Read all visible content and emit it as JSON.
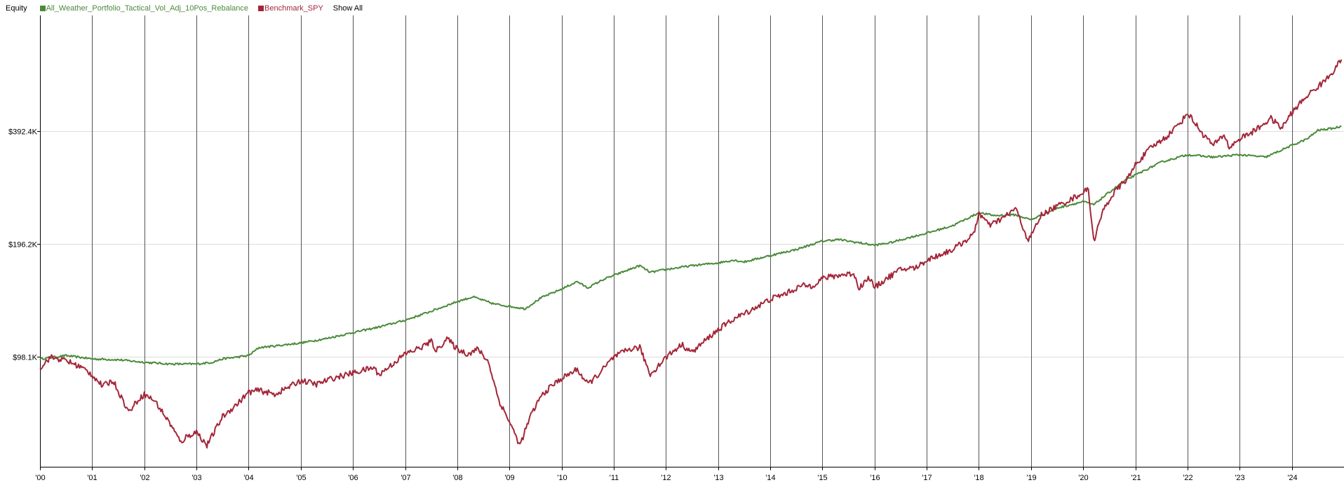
{
  "legend": {
    "title": "Equity",
    "show_all_label": "Show All"
  },
  "chart_data": {
    "type": "line",
    "title": "",
    "ylabel": "Equity",
    "xlabel": "",
    "y_scale": "log",
    "ylim": [
      50000,
      800000
    ],
    "xlim": [
      2000.0,
      2025.0
    ],
    "yticks": [
      {
        "value": 98100,
        "label": "$98.1K"
      },
      {
        "value": 196200,
        "label": "$196.2K"
      },
      {
        "value": 392400,
        "label": "$392.4K"
      }
    ],
    "xticks": [
      {
        "value": 2000,
        "label": "'00"
      },
      {
        "value": 2001,
        "label": "'01"
      },
      {
        "value": 2002,
        "label": "'02"
      },
      {
        "value": 2003,
        "label": "'03"
      },
      {
        "value": 2004,
        "label": "'04"
      },
      {
        "value": 2005,
        "label": "'05"
      },
      {
        "value": 2006,
        "label": "'06"
      },
      {
        "value": 2007,
        "label": "'07"
      },
      {
        "value": 2008,
        "label": "'08"
      },
      {
        "value": 2009,
        "label": "'09"
      },
      {
        "value": 2010,
        "label": "'10"
      },
      {
        "value": 2011,
        "label": "'11"
      },
      {
        "value": 2012,
        "label": "'12"
      },
      {
        "value": 2013,
        "label": "'13"
      },
      {
        "value": 2014,
        "label": "'14"
      },
      {
        "value": 2015,
        "label": "'15"
      },
      {
        "value": 2016,
        "label": "'16"
      },
      {
        "value": 2017,
        "label": "'17"
      },
      {
        "value": 2018,
        "label": "'18"
      },
      {
        "value": 2019,
        "label": "'19"
      },
      {
        "value": 2020,
        "label": "'20"
      },
      {
        "value": 2021,
        "label": "'21"
      },
      {
        "value": 2022,
        "label": "'22"
      },
      {
        "value": 2023,
        "label": "'23"
      },
      {
        "value": 2024,
        "label": "'24"
      }
    ],
    "grid": {
      "vertical": true,
      "horizontal": true
    },
    "legend_position": "top-left",
    "series": [
      {
        "name": "All_Weather_Portfolio_Tactical_Vol_Adj_10Pos_Rebalance",
        "color": "#4a8a3a",
        "points": [
          [
            2000.0,
            97000
          ],
          [
            2000.5,
            99000
          ],
          [
            2001.0,
            97000
          ],
          [
            2001.5,
            96500
          ],
          [
            2002.0,
            95000
          ],
          [
            2002.5,
            94000
          ],
          [
            2003.0,
            94000
          ],
          [
            2003.3,
            95000
          ],
          [
            2003.5,
            97000
          ],
          [
            2004.0,
            99000
          ],
          [
            2004.2,
            104000
          ],
          [
            2004.5,
            105000
          ],
          [
            2005.0,
            107000
          ],
          [
            2005.5,
            110000
          ],
          [
            2006.0,
            114000
          ],
          [
            2006.5,
            118000
          ],
          [
            2007.0,
            123000
          ],
          [
            2007.5,
            130000
          ],
          [
            2008.0,
            138000
          ],
          [
            2008.3,
            142000
          ],
          [
            2008.7,
            136000
          ],
          [
            2009.0,
            134000
          ],
          [
            2009.3,
            132000
          ],
          [
            2009.6,
            141000
          ],
          [
            2010.0,
            149000
          ],
          [
            2010.3,
            156000
          ],
          [
            2010.5,
            150000
          ],
          [
            2010.8,
            158000
          ],
          [
            2011.0,
            162000
          ],
          [
            2011.3,
            168000
          ],
          [
            2011.5,
            172000
          ],
          [
            2011.7,
            165000
          ],
          [
            2012.0,
            168000
          ],
          [
            2012.5,
            172000
          ],
          [
            2013.0,
            175000
          ],
          [
            2013.3,
            178000
          ],
          [
            2013.5,
            176000
          ],
          [
            2014.0,
            183000
          ],
          [
            2014.5,
            190000
          ],
          [
            2015.0,
            200000
          ],
          [
            2015.3,
            202000
          ],
          [
            2015.7,
            198000
          ],
          [
            2016.0,
            195000
          ],
          [
            2016.3,
            198000
          ],
          [
            2016.7,
            205000
          ],
          [
            2017.0,
            210000
          ],
          [
            2017.5,
            220000
          ],
          [
            2018.0,
            238000
          ],
          [
            2018.3,
            234000
          ],
          [
            2018.7,
            235000
          ],
          [
            2019.0,
            228000
          ],
          [
            2019.5,
            245000
          ],
          [
            2020.0,
            255000
          ],
          [
            2020.2,
            250000
          ],
          [
            2020.5,
            270000
          ],
          [
            2020.8,
            290000
          ],
          [
            2021.0,
            300000
          ],
          [
            2021.5,
            325000
          ],
          [
            2022.0,
            340000
          ],
          [
            2022.5,
            335000
          ],
          [
            2023.0,
            340000
          ],
          [
            2023.5,
            335000
          ],
          [
            2024.0,
            360000
          ],
          [
            2024.3,
            375000
          ],
          [
            2024.5,
            395000
          ],
          [
            2024.8,
            400000
          ],
          [
            2024.95,
            405000
          ]
        ]
      },
      {
        "name": "Benchmark_SPY",
        "color": "#a32638",
        "points": [
          [
            2000.0,
            92000
          ],
          [
            2000.2,
            98000
          ],
          [
            2000.5,
            96000
          ],
          [
            2000.8,
            92000
          ],
          [
            2001.0,
            88000
          ],
          [
            2001.2,
            82000
          ],
          [
            2001.4,
            85000
          ],
          [
            2001.7,
            70000
          ],
          [
            2001.9,
            76000
          ],
          [
            2002.0,
            78000
          ],
          [
            2002.2,
            75000
          ],
          [
            2002.5,
            65000
          ],
          [
            2002.7,
            58000
          ],
          [
            2002.8,
            60000
          ],
          [
            2003.0,
            62000
          ],
          [
            2003.2,
            57000
          ],
          [
            2003.5,
            68000
          ],
          [
            2003.8,
            74000
          ],
          [
            2004.0,
            79000
          ],
          [
            2004.2,
            80000
          ],
          [
            2004.5,
            78000
          ],
          [
            2004.8,
            82000
          ],
          [
            2005.0,
            85000
          ],
          [
            2005.3,
            83000
          ],
          [
            2005.6,
            86000
          ],
          [
            2006.0,
            89000
          ],
          [
            2006.4,
            92000
          ],
          [
            2006.5,
            88000
          ],
          [
            2006.8,
            95000
          ],
          [
            2007.0,
            100000
          ],
          [
            2007.3,
            104000
          ],
          [
            2007.5,
            108000
          ],
          [
            2007.6,
            102000
          ],
          [
            2007.8,
            110000
          ],
          [
            2008.0,
            103000
          ],
          [
            2008.2,
            100000
          ],
          [
            2008.4,
            103000
          ],
          [
            2008.6,
            95000
          ],
          [
            2008.8,
            75000
          ],
          [
            2009.0,
            66000
          ],
          [
            2009.2,
            57000
          ],
          [
            2009.4,
            68000
          ],
          [
            2009.6,
            77000
          ],
          [
            2009.8,
            82000
          ],
          [
            2010.0,
            86000
          ],
          [
            2010.3,
            91000
          ],
          [
            2010.5,
            83000
          ],
          [
            2010.7,
            88000
          ],
          [
            2011.0,
            98000
          ],
          [
            2011.3,
            103000
          ],
          [
            2011.5,
            104000
          ],
          [
            2011.7,
            88000
          ],
          [
            2012.0,
            98000
          ],
          [
            2012.3,
            106000
          ],
          [
            2012.5,
            101000
          ],
          [
            2012.8,
            110000
          ],
          [
            2013.0,
            116000
          ],
          [
            2013.3,
            124000
          ],
          [
            2013.5,
            128000
          ],
          [
            2013.8,
            135000
          ],
          [
            2014.0,
            140000
          ],
          [
            2014.3,
            145000
          ],
          [
            2014.6,
            152000
          ],
          [
            2014.8,
            152000
          ],
          [
            2015.0,
            159000
          ],
          [
            2015.3,
            162000
          ],
          [
            2015.6,
            164000
          ],
          [
            2015.7,
            150000
          ],
          [
            2015.9,
            160000
          ],
          [
            2016.0,
            150000
          ],
          [
            2016.2,
            158000
          ],
          [
            2016.5,
            168000
          ],
          [
            2016.8,
            170000
          ],
          [
            2017.0,
            178000
          ],
          [
            2017.5,
            190000
          ],
          [
            2017.9,
            208000
          ],
          [
            2018.0,
            238000
          ],
          [
            2018.2,
            220000
          ],
          [
            2018.5,
            232000
          ],
          [
            2018.7,
            245000
          ],
          [
            2018.95,
            200000
          ],
          [
            2019.2,
            235000
          ],
          [
            2019.5,
            248000
          ],
          [
            2019.8,
            260000
          ],
          [
            2020.1,
            275000
          ],
          [
            2020.2,
            200000
          ],
          [
            2020.4,
            245000
          ],
          [
            2020.6,
            270000
          ],
          [
            2020.9,
            300000
          ],
          [
            2021.0,
            320000
          ],
          [
            2021.3,
            355000
          ],
          [
            2021.6,
            380000
          ],
          [
            2021.9,
            420000
          ],
          [
            2022.0,
            440000
          ],
          [
            2022.3,
            385000
          ],
          [
            2022.5,
            360000
          ],
          [
            2022.7,
            385000
          ],
          [
            2022.8,
            355000
          ],
          [
            2023.0,
            375000
          ],
          [
            2023.3,
            395000
          ],
          [
            2023.6,
            425000
          ],
          [
            2023.8,
            400000
          ],
          [
            2024.0,
            440000
          ],
          [
            2024.3,
            490000
          ],
          [
            2024.6,
            530000
          ],
          [
            2024.8,
            570000
          ],
          [
            2024.95,
            610000
          ]
        ]
      }
    ]
  }
}
